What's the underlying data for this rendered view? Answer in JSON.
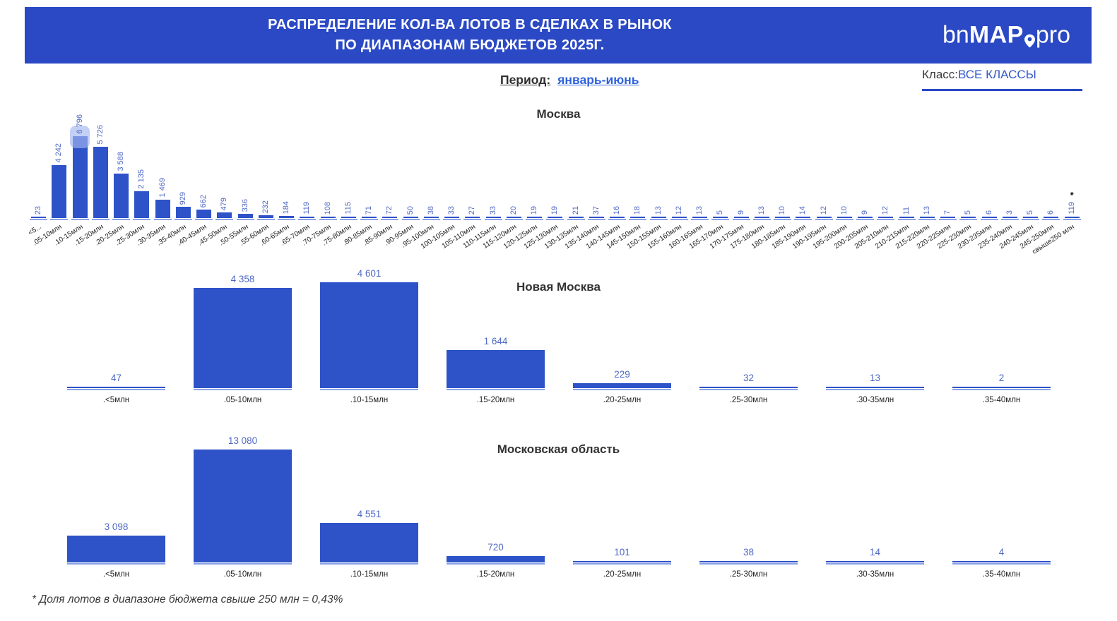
{
  "header": {
    "title_line1": "РАСПРЕДЕЛЕНИЕ КОЛ-ВА ЛОТОВ В СДЕЛКАХ В РЫНОК",
    "title_line2": "ПО ДИАПАЗОНАМ БЮДЖЕТОВ 2025Г.",
    "logo": {
      "part1": "bn",
      "part2": "MAP",
      "part3": "pro",
      "pin_icon": "map-pin-icon"
    }
  },
  "filters": {
    "period_label": "Период:",
    "period_value": "январь-июнь",
    "class_label": "Класс:",
    "class_value": "ВСЕ КЛАССЫ"
  },
  "footnote": "* Доля лотов в диапазоне бюджета свыше 250 млн = 0,43%",
  "colors": {
    "banner": "#2b49c4",
    "bar": "#2e53c8",
    "value_label": "#5169c5",
    "baseline": "#8ca3e6",
    "link": "#2f62dd",
    "highlight": "rgba(163,183,241,0.65)"
  },
  "chart_data": [
    {
      "type": "bar",
      "title": "Москва",
      "categories": [
        "<5...",
        ".05-10млн",
        ".10-15млн",
        ".15-20млн",
        ".20-25млн",
        ".25-30млн",
        ".30-35млн",
        ".35-40млн",
        ".40-45млн",
        ".45-50млн",
        ".50-55млн",
        ".55-60млн",
        ".60-65млн",
        ".65-70млн",
        ".70-75млн",
        ".75-80млн",
        ".80-85млн",
        ".85-90млн",
        ".90-95млн",
        ".95-100млн",
        "100-105млн",
        "105-110млн",
        "110-115млн",
        "115-120млн",
        "120-125млн",
        "125-130млн",
        "130-135млн",
        "135-140млн",
        "140-145млн",
        "145-150млн",
        "150-155млн",
        "155-160млн",
        "160-165млн",
        "165-170млн",
        "170-175млн",
        "175-180млн",
        "180-185млн",
        "185-190млн",
        "190-195млн",
        "195-200млн",
        "200-205млн",
        "205-210млн",
        "210-215млн",
        "215-220млн",
        "220-225млн",
        "225-230млн",
        "230-235млн",
        "235-240млн",
        "240-245млн",
        "245-250млн",
        "свыше250 млн"
      ],
      "values": [
        23,
        4242,
        6796,
        5726,
        3588,
        2135,
        1469,
        929,
        662,
        479,
        336,
        232,
        184,
        119,
        108,
        115,
        71,
        72,
        50,
        38,
        33,
        27,
        33,
        20,
        19,
        19,
        21,
        37,
        16,
        18,
        13,
        12,
        13,
        5,
        9,
        13,
        10,
        14,
        12,
        10,
        9,
        12,
        11,
        13,
        7,
        5,
        6,
        3,
        5,
        6,
        119
      ],
      "highlight_index": 2,
      "footnote_marker": "*",
      "footnote_marker_index": 50,
      "value_label_orientation": "vertical",
      "x_label_orientation": "diagonal",
      "ylim": [
        0,
        6796
      ],
      "grid": false,
      "legend": null
    },
    {
      "type": "bar",
      "title": "Новая Москва",
      "categories": [
        ".<5млн",
        ".05-10млн",
        ".10-15млн",
        ".15-20млн",
        ".20-25млн",
        ".25-30млн",
        ".30-35млн",
        ".35-40млн"
      ],
      "values": [
        47,
        4358,
        4601,
        1644,
        229,
        32,
        13,
        2
      ],
      "value_label_orientation": "horizontal",
      "x_label_orientation": "flat",
      "ylim": [
        0,
        4601
      ],
      "grid": false,
      "legend": null
    },
    {
      "type": "bar",
      "title": "Московская область",
      "categories": [
        ".<5млн",
        ".05-10млн",
        ".10-15млн",
        ".15-20млн",
        ".20-25млн",
        ".25-30млн",
        ".30-35млн",
        ".35-40млн"
      ],
      "values": [
        3098,
        13080,
        4551,
        720,
        101,
        38,
        14,
        4
      ],
      "value_label_orientation": "horizontal",
      "x_label_orientation": "flat",
      "ylim": [
        0,
        13080
      ],
      "grid": false,
      "legend": null
    }
  ]
}
